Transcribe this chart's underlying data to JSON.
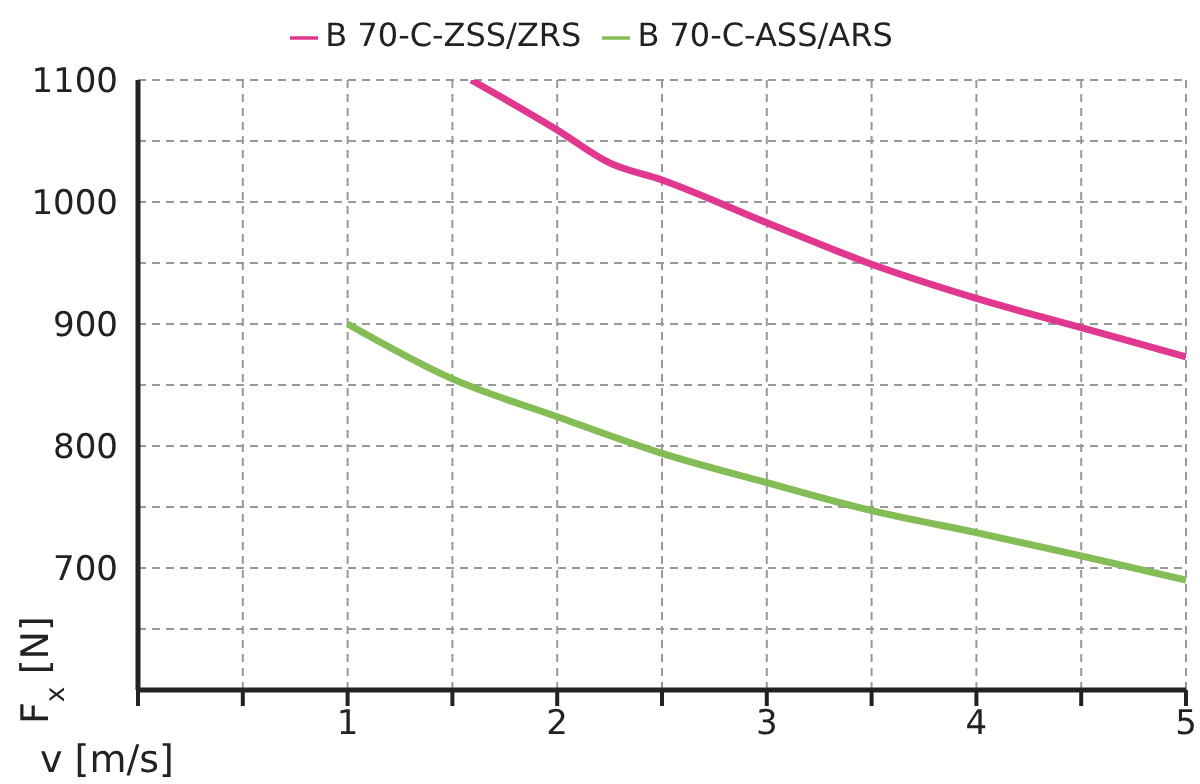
{
  "chart_data": {
    "type": "line",
    "xlabel": "v [m/s]",
    "ylabel": "F$_{x}$ [N]",
    "series": [
      {
        "name": "B 70-C-ZSS/ZRS",
        "color": "#e0388f",
        "x": [
          1.59,
          2,
          2.25,
          2.5,
          3,
          3.5,
          4,
          4.5,
          5
        ],
        "values": [
          1100,
          1059,
          1032,
          1018,
          983,
          949,
          921,
          897,
          873
        ]
      },
      {
        "name": "B 70-C-ASS/ARS",
        "color": "#84bc55",
        "x": [
          1,
          1.5,
          2,
          2.5,
          3,
          3.5,
          4,
          4.5,
          5
        ],
        "values": [
          900,
          855,
          824,
          794,
          770,
          747,
          729,
          710,
          690
        ]
      }
    ],
    "xlim": [
      0,
      5
    ],
    "xticks": [
      {
        "value": 0,
        "label": null
      },
      {
        "value": 0.5,
        "label": null
      },
      1,
      {
        "value": 1.5,
        "label": null
      },
      2,
      {
        "value": 2.5,
        "label": null
      },
      3,
      {
        "value": 3.5,
        "label": null
      },
      4,
      {
        "value": 4.5,
        "label": null
      },
      5
    ],
    "ylim": [
      600,
      1100
    ],
    "yticks": [
      {
        "value": 600,
        "label": null
      },
      {
        "value": 650,
        "label": null
      },
      700,
      {
        "value": 750,
        "label": null
      },
      800,
      {
        "value": 850,
        "label": null
      },
      900,
      {
        "value": 950,
        "label": null
      },
      1000,
      {
        "value": 1050,
        "label": null
      },
      1100
    ],
    "grid": true,
    "legend": "top",
    "marker": "none",
    "line_style": "solid"
  }
}
